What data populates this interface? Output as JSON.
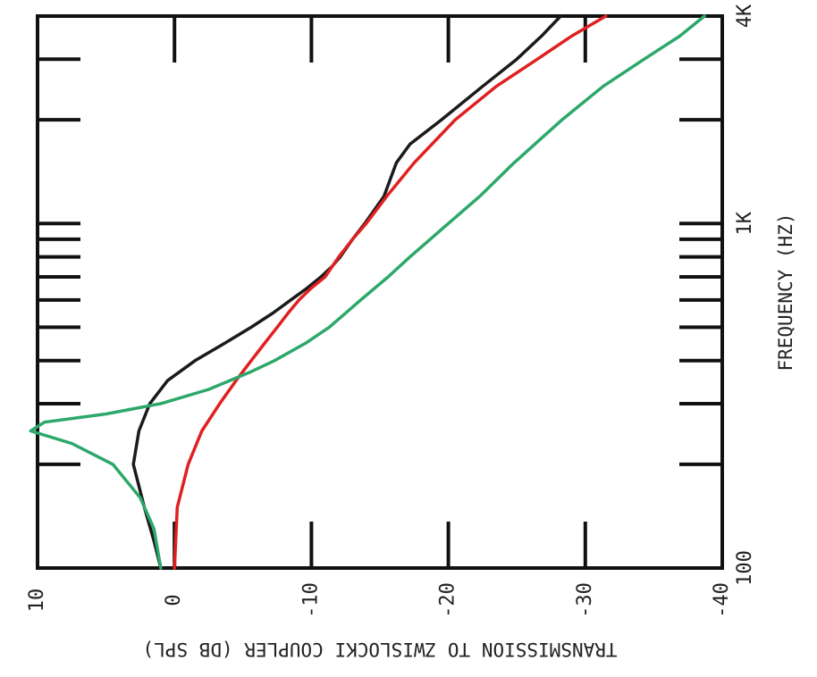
{
  "chart_data": {
    "type": "line",
    "orientation": "rotated-90-clockwise",
    "xlabel": "FREQUENCY (HZ)",
    "ylabel": "TRANSMISSION TO ZWISLOCKI COUPLER (DB SPL)",
    "x_scale": "log",
    "xlim": [
      100,
      4000
    ],
    "ylim": [
      -40,
      10
    ],
    "x_ticks": [
      {
        "value": 100,
        "label": "100"
      },
      {
        "value": 1000,
        "label": "1K"
      },
      {
        "value": 4000,
        "label": "4K"
      }
    ],
    "y_ticks": [
      {
        "value": 10,
        "label": "10"
      },
      {
        "value": 0,
        "label": "0"
      },
      {
        "value": -10,
        "label": "-10"
      },
      {
        "value": -20,
        "label": "-20"
      },
      {
        "value": -30,
        "label": "-30"
      },
      {
        "value": -40,
        "label": "-40"
      }
    ],
    "grid": false,
    "series": [
      {
        "color": "#1a1a1a",
        "x": [
          100,
          120,
          150,
          200,
          250,
          300,
          350,
          400,
          450,
          500,
          550,
          600,
          650,
          700,
          750,
          800,
          900,
          1000,
          1200,
          1500,
          1700,
          2000,
          2500,
          3000,
          3500,
          4000
        ],
        "y": [
          1,
          1.5,
          2.2,
          3,
          2.6,
          1.8,
          0.5,
          -1.5,
          -3.7,
          -5.6,
          -7.2,
          -8.5,
          -9.7,
          -10.7,
          -11.5,
          -12.1,
          -13,
          -13.9,
          -15.3,
          -16.2,
          -17.2,
          -19.5,
          -22.5,
          -25,
          -26.8,
          -28.2
        ]
      },
      {
        "color": "#e02020",
        "x": [
          100,
          150,
          200,
          250,
          300,
          350,
          400,
          450,
          500,
          550,
          600,
          650,
          700,
          800,
          900,
          1000,
          1200,
          1500,
          2000,
          2500,
          3000,
          3500,
          4000
        ],
        "y": [
          0,
          -0.2,
          -1,
          -2,
          -3.3,
          -4.5,
          -5.6,
          -6.6,
          -7.5,
          -8.3,
          -9.1,
          -10,
          -11,
          -12,
          -13,
          -14,
          -15.5,
          -17.5,
          -20.5,
          -23.5,
          -26.5,
          -29,
          -31.5
        ]
      },
      {
        "color": "#2ca86a",
        "x": [
          100,
          130,
          160,
          200,
          230,
          250,
          265,
          280,
          300,
          330,
          370,
          400,
          450,
          500,
          600,
          700,
          800,
          1000,
          1200,
          1500,
          2000,
          2500,
          3000,
          3500,
          4000
        ],
        "y": [
          1,
          1.5,
          2.5,
          4.5,
          7.5,
          10.5,
          9.5,
          5,
          1,
          -2.5,
          -5.5,
          -7.3,
          -9.6,
          -11.3,
          -13.6,
          -15.6,
          -17.2,
          -20,
          -22.3,
          -24.8,
          -28.3,
          -31.3,
          -34.3,
          -36.9,
          -38.7
        ]
      }
    ]
  }
}
